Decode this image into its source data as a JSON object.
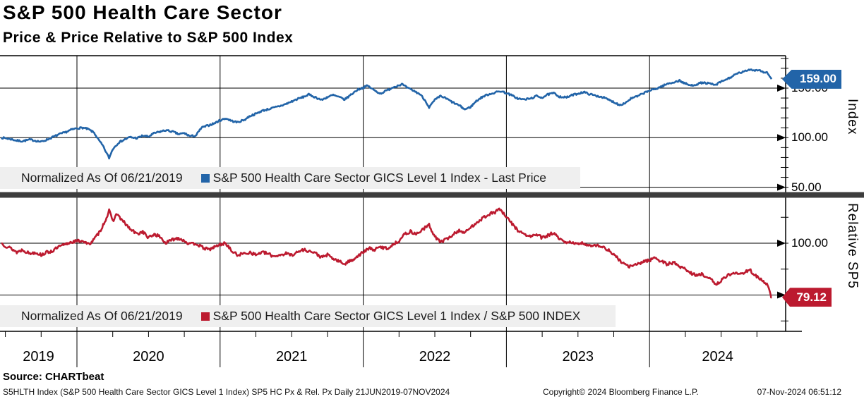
{
  "header": {
    "title": "S&P 500 Health Care Sector",
    "subtitle": "Price & Price Relative to S&P 500 Index"
  },
  "colors": {
    "price_line": "#2264a8",
    "relative_line": "#bc1a2f",
    "separator": "#3d3d3d",
    "legend_bg": "#efefef",
    "grid": "#000000",
    "flag_text": "#ffffff"
  },
  "top_panel": {
    "legend_note": "Normalized As Of 06/21/2019",
    "legend_series": "S&P 500 Health Care Sector GICS Level 1 Index - Last Price",
    "axis_title": "Index",
    "flag_label": "159.00",
    "flag_value": 159.0,
    "tick_labels": [
      {
        "value": 150,
        "label": "150.00"
      },
      {
        "value": 100,
        "label": "100.00"
      },
      {
        "value": 50,
        "label": "50.00"
      }
    ],
    "gridline_values": [
      150,
      100,
      50
    ]
  },
  "bottom_panel": {
    "legend_note": "Normalized As Of 06/21/2019",
    "legend_series": "S&P 500 Health Care Sector GICS Level 1 Index / S&P 500 INDEX",
    "axis_title": "Relative SP5",
    "flag_label": "79.12",
    "flag_value": 79.12,
    "tick_labels": [
      {
        "value": 100,
        "label": "100.00"
      }
    ],
    "gridline_values": [
      100,
      80
    ]
  },
  "x_axis": {
    "years": [
      "2019",
      "2020",
      "2021",
      "2022",
      "2023",
      "2024"
    ]
  },
  "footer": {
    "source": "Source: CHARTbeat",
    "description": "S5HLTH Index (S&P 500 Health Care Sector GICS Level 1 Index) SP5 HC Px & Rel. Px  Daily 21JUN2019-07NOV2024",
    "copyright": "Copyright© 2024 Bloomberg Finance L.P.",
    "timestamp": "07-Nov-2024 06:51:12"
  },
  "chart_data": [
    {
      "type": "line",
      "name": "S&P 500 Health Care Sector GICS Level 1 Index - Last Price",
      "panel": "top",
      "ylabel": "Index",
      "normalized_as_of": "06/21/2019",
      "x_unit": "decimal_year",
      "xlim": [
        2019.463,
        2024.951
      ],
      "ylim": [
        45,
        183
      ],
      "yticks": [
        50,
        100,
        150
      ],
      "last_value": 159.0,
      "points": [
        [
          2019.472,
          100
        ],
        [
          2019.5,
          99.5
        ],
        [
          2019.54,
          98.5
        ],
        [
          2019.58,
          97.0
        ],
        [
          2019.62,
          96.5
        ],
        [
          2019.67,
          98.0
        ],
        [
          2019.71,
          97.0
        ],
        [
          2019.75,
          95.8
        ],
        [
          2019.79,
          98.0
        ],
        [
          2019.83,
          100.5
        ],
        [
          2019.87,
          103.0
        ],
        [
          2019.92,
          105.5
        ],
        [
          2019.96,
          108.0
        ],
        [
          2020.0,
          109.5
        ],
        [
          2020.04,
          110.0
        ],
        [
          2020.08,
          108.5
        ],
        [
          2020.12,
          105.0
        ],
        [
          2020.15,
          98.0
        ],
        [
          2020.18,
          92.0
        ],
        [
          2020.225,
          79.5
        ],
        [
          2020.25,
          88.5
        ],
        [
          2020.29,
          95.0
        ],
        [
          2020.33,
          98.0
        ],
        [
          2020.37,
          100.5
        ],
        [
          2020.42,
          99.5
        ],
        [
          2020.46,
          102.0
        ],
        [
          2020.5,
          101.0
        ],
        [
          2020.54,
          104.5
        ],
        [
          2020.58,
          106.0
        ],
        [
          2020.62,
          107.5
        ],
        [
          2020.67,
          106.0
        ],
        [
          2020.71,
          103.5
        ],
        [
          2020.75,
          104.5
        ],
        [
          2020.79,
          101.5
        ],
        [
          2020.83,
          102.0
        ],
        [
          2020.87,
          110.0
        ],
        [
          2020.92,
          112.5
        ],
        [
          2020.96,
          114.5
        ],
        [
          2021.0,
          117.5
        ],
        [
          2021.04,
          119.5
        ],
        [
          2021.08,
          117.0
        ],
        [
          2021.12,
          115.5
        ],
        [
          2021.17,
          118.0
        ],
        [
          2021.21,
          122.0
        ],
        [
          2021.25,
          124.0
        ],
        [
          2021.29,
          127.0
        ],
        [
          2021.33,
          128.5
        ],
        [
          2021.37,
          130.0
        ],
        [
          2021.42,
          132.0
        ],
        [
          2021.46,
          134.0
        ],
        [
          2021.5,
          136.5
        ],
        [
          2021.54,
          139.0
        ],
        [
          2021.58,
          141.0
        ],
        [
          2021.62,
          143.5
        ],
        [
          2021.67,
          140.5
        ],
        [
          2021.71,
          138.0
        ],
        [
          2021.75,
          141.0
        ],
        [
          2021.79,
          143.0
        ],
        [
          2021.83,
          141.0
        ],
        [
          2021.87,
          138.5
        ],
        [
          2021.92,
          144.0
        ],
        [
          2021.96,
          148.5
        ],
        [
          2022.0,
          150.5
        ],
        [
          2022.03,
          152.5
        ],
        [
          2022.08,
          147.5
        ],
        [
          2022.12,
          144.5
        ],
        [
          2022.17,
          148.0
        ],
        [
          2022.21,
          151.0
        ],
        [
          2022.27,
          154.0
        ],
        [
          2022.31,
          150.0
        ],
        [
          2022.35,
          147.5
        ],
        [
          2022.4,
          143.5
        ],
        [
          2022.44,
          136.0
        ],
        [
          2022.46,
          130.5
        ],
        [
          2022.5,
          138.0
        ],
        [
          2022.54,
          142.0
        ],
        [
          2022.58,
          139.5
        ],
        [
          2022.62,
          136.0
        ],
        [
          2022.67,
          132.5
        ],
        [
          2022.71,
          128.5
        ],
        [
          2022.75,
          131.0
        ],
        [
          2022.79,
          137.0
        ],
        [
          2022.83,
          141.0
        ],
        [
          2022.87,
          143.5
        ],
        [
          2022.92,
          145.5
        ],
        [
          2022.96,
          147.0
        ],
        [
          2023.0,
          145.0
        ],
        [
          2023.04,
          142.5
        ],
        [
          2023.08,
          139.5
        ],
        [
          2023.12,
          138.5
        ],
        [
          2023.17,
          139.5
        ],
        [
          2023.21,
          142.0
        ],
        [
          2023.25,
          140.5
        ],
        [
          2023.29,
          143.5
        ],
        [
          2023.33,
          145.0
        ],
        [
          2023.37,
          141.5
        ],
        [
          2023.42,
          140.5
        ],
        [
          2023.46,
          143.0
        ],
        [
          2023.5,
          144.5
        ],
        [
          2023.54,
          146.0
        ],
        [
          2023.58,
          144.0
        ],
        [
          2023.62,
          142.5
        ],
        [
          2023.67,
          141.0
        ],
        [
          2023.71,
          138.5
        ],
        [
          2023.75,
          136.0
        ],
        [
          2023.79,
          133.0
        ],
        [
          2023.83,
          135.0
        ],
        [
          2023.87,
          139.5
        ],
        [
          2023.92,
          142.0
        ],
        [
          2023.96,
          145.0
        ],
        [
          2024.0,
          147.5
        ],
        [
          2024.04,
          149.0
        ],
        [
          2024.08,
          151.5
        ],
        [
          2024.12,
          154.0
        ],
        [
          2024.17,
          156.0
        ],
        [
          2024.21,
          157.5
        ],
        [
          2024.25,
          154.5
        ],
        [
          2024.29,
          152.5
        ],
        [
          2024.33,
          154.0
        ],
        [
          2024.37,
          155.5
        ],
        [
          2024.42,
          154.5
        ],
        [
          2024.46,
          153.0
        ],
        [
          2024.5,
          156.5
        ],
        [
          2024.54,
          159.0
        ],
        [
          2024.58,
          162.0
        ],
        [
          2024.62,
          165.0
        ],
        [
          2024.67,
          167.0
        ],
        [
          2024.7,
          169.0
        ],
        [
          2024.73,
          168.0
        ],
        [
          2024.76,
          168.5
        ],
        [
          2024.79,
          166.5
        ],
        [
          2024.82,
          165.5
        ],
        [
          2024.84,
          162.0
        ],
        [
          2024.852,
          159.0
        ]
      ]
    },
    {
      "type": "line",
      "name": "S&P 500 Health Care Sector GICS Level 1 Index / S&P 500 INDEX",
      "panel": "bottom",
      "ylabel": "Relative SP5",
      "normalized_as_of": "06/21/2019",
      "x_unit": "decimal_year",
      "xlim": [
        2019.463,
        2024.951
      ],
      "ylim": [
        66,
        117.5
      ],
      "yticks": [
        80,
        100
      ],
      "last_value": 79.12,
      "points": [
        [
          2019.472,
          100
        ],
        [
          2019.5,
          99.0
        ],
        [
          2019.54,
          98.0
        ],
        [
          2019.58,
          96.5
        ],
        [
          2019.62,
          97.5
        ],
        [
          2019.67,
          96.0
        ],
        [
          2019.71,
          96.5
        ],
        [
          2019.75,
          95.5
        ],
        [
          2019.79,
          96.5
        ],
        [
          2019.83,
          97.0
        ],
        [
          2019.87,
          98.5
        ],
        [
          2019.92,
          99.5
        ],
        [
          2019.96,
          100.5
        ],
        [
          2020.0,
          100.8
        ],
        [
          2020.04,
          101.0
        ],
        [
          2020.08,
          99.5
        ],
        [
          2020.12,
          101.5
        ],
        [
          2020.16,
          104.5
        ],
        [
          2020.2,
          109.0
        ],
        [
          2020.225,
          112.5
        ],
        [
          2020.25,
          108.5
        ],
        [
          2020.28,
          111.5
        ],
        [
          2020.31,
          109.0
        ],
        [
          2020.33,
          108.0
        ],
        [
          2020.37,
          105.5
        ],
        [
          2020.42,
          103.5
        ],
        [
          2020.46,
          104.5
        ],
        [
          2020.5,
          102.0
        ],
        [
          2020.54,
          103.5
        ],
        [
          2020.58,
          102.5
        ],
        [
          2020.62,
          100.0
        ],
        [
          2020.67,
          101.5
        ],
        [
          2020.71,
          102.0
        ],
        [
          2020.75,
          101.0
        ],
        [
          2020.79,
          99.5
        ],
        [
          2020.83,
          100.0
        ],
        [
          2020.87,
          98.5
        ],
        [
          2020.92,
          97.5
        ],
        [
          2020.96,
          98.5
        ],
        [
          2021.0,
          99.5
        ],
        [
          2021.04,
          100.0
        ],
        [
          2021.08,
          97.0
        ],
        [
          2021.12,
          95.5
        ],
        [
          2021.17,
          96.0
        ],
        [
          2021.21,
          96.5
        ],
        [
          2021.25,
          95.5
        ],
        [
          2021.29,
          96.5
        ],
        [
          2021.33,
          96.0
        ],
        [
          2021.37,
          95.0
        ],
        [
          2021.42,
          95.5
        ],
        [
          2021.46,
          96.0
        ],
        [
          2021.5,
          95.5
        ],
        [
          2021.54,
          96.5
        ],
        [
          2021.58,
          97.5
        ],
        [
          2021.62,
          97.0
        ],
        [
          2021.67,
          96.0
        ],
        [
          2021.71,
          94.5
        ],
        [
          2021.75,
          95.5
        ],
        [
          2021.79,
          94.0
        ],
        [
          2021.83,
          93.0
        ],
        [
          2021.87,
          92.0
        ],
        [
          2021.92,
          93.5
        ],
        [
          2021.96,
          95.0
        ],
        [
          2022.0,
          96.5
        ],
        [
          2022.04,
          98.0
        ],
        [
          2022.08,
          97.5
        ],
        [
          2022.12,
          98.5
        ],
        [
          2022.17,
          98.0
        ],
        [
          2022.21,
          99.5
        ],
        [
          2022.25,
          101.0
        ],
        [
          2022.29,
          103.5
        ],
        [
          2022.33,
          104.5
        ],
        [
          2022.37,
          103.5
        ],
        [
          2022.42,
          105.5
        ],
        [
          2022.46,
          107.0
        ],
        [
          2022.5,
          102.5
        ],
        [
          2022.54,
          100.5
        ],
        [
          2022.58,
          101.5
        ],
        [
          2022.62,
          103.0
        ],
        [
          2022.67,
          105.0
        ],
        [
          2022.71,
          104.0
        ],
        [
          2022.75,
          106.0
        ],
        [
          2022.79,
          108.0
        ],
        [
          2022.83,
          109.5
        ],
        [
          2022.87,
          111.0
        ],
        [
          2022.92,
          112.0
        ],
        [
          2022.95,
          113.3
        ],
        [
          2023.0,
          110.0
        ],
        [
          2023.04,
          107.5
        ],
        [
          2023.08,
          105.0
        ],
        [
          2023.12,
          103.5
        ],
        [
          2023.17,
          102.5
        ],
        [
          2023.21,
          103.5
        ],
        [
          2023.25,
          102.0
        ],
        [
          2023.29,
          103.0
        ],
        [
          2023.33,
          104.0
        ],
        [
          2023.37,
          101.5
        ],
        [
          2023.42,
          100.0
        ],
        [
          2023.46,
          100.5
        ],
        [
          2023.5,
          99.5
        ],
        [
          2023.54,
          100.0
        ],
        [
          2023.58,
          99.0
        ],
        [
          2023.62,
          99.5
        ],
        [
          2023.67,
          98.5
        ],
        [
          2023.71,
          97.5
        ],
        [
          2023.75,
          95.5
        ],
        [
          2023.79,
          93.5
        ],
        [
          2023.83,
          91.5
        ],
        [
          2023.87,
          91.0
        ],
        [
          2023.92,
          92.0
        ],
        [
          2023.96,
          93.0
        ],
        [
          2024.0,
          93.5
        ],
        [
          2024.04,
          94.5
        ],
        [
          2024.08,
          93.0
        ],
        [
          2024.12,
          92.0
        ],
        [
          2024.17,
          92.5
        ],
        [
          2024.21,
          91.0
        ],
        [
          2024.25,
          90.0
        ],
        [
          2024.29,
          88.5
        ],
        [
          2024.33,
          87.5
        ],
        [
          2024.37,
          88.0
        ],
        [
          2024.42,
          86.5
        ],
        [
          2024.46,
          84.0
        ],
        [
          2024.5,
          85.5
        ],
        [
          2024.54,
          87.5
        ],
        [
          2024.58,
          88.5
        ],
        [
          2024.62,
          88.0
        ],
        [
          2024.67,
          89.0
        ],
        [
          2024.7,
          89.8
        ],
        [
          2024.73,
          88.0
        ],
        [
          2024.76,
          86.5
        ],
        [
          2024.79,
          85.5
        ],
        [
          2024.82,
          84.0
        ],
        [
          2024.84,
          81.5
        ],
        [
          2024.849,
          78.8
        ],
        [
          2024.852,
          79.12
        ]
      ]
    }
  ]
}
